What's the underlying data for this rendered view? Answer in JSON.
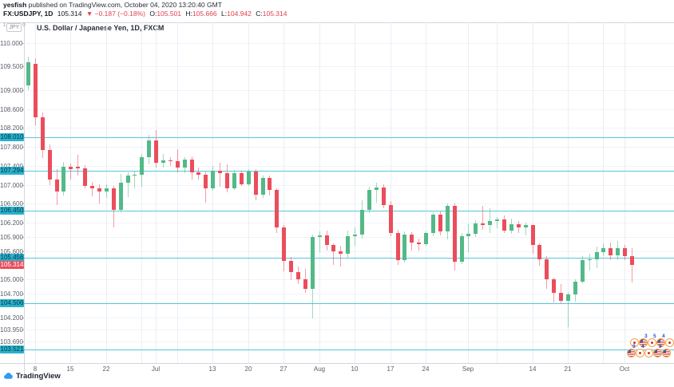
{
  "header": {
    "byline": {
      "author": "yesfish",
      "rest": " published on TradingView.com, October 04, 2020 13:20:40 GMT"
    },
    "symbol_line": {
      "symbol": "FX:USDJPY, 1D",
      "last": "105.314",
      "change": "▼ −0.187 (−0.18%)",
      "o_label": "O:",
      "o": "105.501",
      "h_label": "H:",
      "h": "105.666",
      "l_label": "L:",
      "l": "104.942",
      "c_label": "C:",
      "c": "105.314"
    }
  },
  "chart": {
    "title": "U.S. Dollar / Japanese Yen, 1D, FXCM",
    "axis_unit": {
      "pre": "1",
      "unit": "JPY",
      "post": "0"
    }
  },
  "colors": {
    "up": "#53b987",
    "down": "#eb4d5c",
    "level_line": "#56c7da",
    "level_chip_bg": "#29b2cc",
    "level_chip_text": "#0a3340",
    "last_chip_bg": "#eb4d5c",
    "last_chip_text": "#ffffff",
    "logo_blue": "#2e9bf0"
  },
  "footer": {
    "logo_text": "TradingView"
  },
  "events": {
    "rows": [
      [
        {
          "type": "jp"
        },
        {
          "type": "us",
          "count": "3"
        },
        {
          "type": "jp",
          "count": "5"
        },
        {
          "type": "us",
          "count": "4"
        },
        {
          "type": "jp"
        }
      ],
      [
        {
          "type": "us",
          "count": "9"
        },
        {
          "type": "jp",
          "count": "4"
        },
        {
          "type": "jp"
        },
        {
          "type": "us",
          "count": "9"
        },
        {
          "type": "us"
        }
      ]
    ]
  },
  "chart_data": {
    "type": "candlestick",
    "title": "U.S. Dollar / Japanese Yen, 1D, FXCM",
    "symbol": "USDJPY",
    "timeframe": "1D",
    "exchange": "FXCM",
    "grid": true,
    "y_axis": {
      "side": "left",
      "range": [
        103.24,
        110.43
      ],
      "tick_labels": [
        "110.000",
        "109.500",
        "109.000",
        "108.600",
        "108.200",
        "107.800",
        "107.400",
        "107.000",
        "106.600",
        "106.200",
        "105.900",
        "105.600",
        "105.000",
        "104.700",
        "104.200",
        "103.950",
        "103.690"
      ]
    },
    "x_axis": {
      "ticks": [
        {
          "label": "8",
          "i": 1
        },
        {
          "label": "15",
          "i": 6
        },
        {
          "label": "22",
          "i": 11
        },
        {
          "label": "Jul",
          "i": 18
        },
        {
          "label": "13",
          "i": 26
        },
        {
          "label": "20",
          "i": 31
        },
        {
          "label": "27",
          "i": 36
        },
        {
          "label": "Aug",
          "i": 41
        },
        {
          "label": "10",
          "i": 46
        },
        {
          "label": "17",
          "i": 51
        },
        {
          "label": "24",
          "i": 56
        },
        {
          "label": "Sep",
          "i": 62
        },
        {
          "label": "14",
          "i": 71
        },
        {
          "label": "21",
          "i": 76
        },
        {
          "label": "Oct",
          "i": 84
        }
      ],
      "minor_gridlines": [
        16,
        21,
        66,
        81
      ]
    },
    "horizontal_levels": [
      108.01,
      107.294,
      106.45,
      105.456,
      104.506,
      103.521
    ],
    "last_price": 105.314,
    "candles": [
      {
        "d": "Jun 5",
        "o": 109.1,
        "h": 109.7,
        "l": 109.0,
        "c": 109.59
      },
      {
        "d": "Jun 8",
        "o": 109.56,
        "h": 109.68,
        "l": 108.26,
        "c": 108.42
      },
      {
        "d": "Jun 9",
        "o": 108.42,
        "h": 108.52,
        "l": 107.56,
        "c": 107.74
      },
      {
        "d": "Jun 10",
        "o": 107.74,
        "h": 107.86,
        "l": 106.99,
        "c": 107.12
      },
      {
        "d": "Jun 11",
        "o": 107.12,
        "h": 107.33,
        "l": 106.58,
        "c": 106.86
      },
      {
        "d": "Jun 12",
        "o": 106.86,
        "h": 107.48,
        "l": 106.77,
        "c": 107.38
      },
      {
        "d": "Jun 15",
        "o": 107.38,
        "h": 107.45,
        "l": 107.12,
        "c": 107.33
      },
      {
        "d": "Jun 16",
        "o": 107.38,
        "h": 107.64,
        "l": 107.2,
        "c": 107.35
      },
      {
        "d": "Jun 17",
        "o": 107.35,
        "h": 107.42,
        "l": 106.92,
        "c": 106.97
      },
      {
        "d": "Jun 18",
        "o": 106.97,
        "h": 107.07,
        "l": 106.76,
        "c": 106.92
      },
      {
        "d": "Jun 19",
        "o": 106.92,
        "h": 107.02,
        "l": 106.6,
        "c": 106.86
      },
      {
        "d": "Jun 22",
        "o": 106.86,
        "h": 107.02,
        "l": 106.72,
        "c": 106.93
      },
      {
        "d": "Jun 23",
        "o": 106.93,
        "h": 106.98,
        "l": 106.1,
        "c": 106.48
      },
      {
        "d": "Jun 24",
        "o": 106.48,
        "h": 107.23,
        "l": 106.43,
        "c": 107.05
      },
      {
        "d": "Jun 25",
        "o": 107.05,
        "h": 107.27,
        "l": 106.74,
        "c": 107.19
      },
      {
        "d": "Jun 26",
        "o": 107.19,
        "h": 107.3,
        "l": 106.93,
        "c": 107.22
      },
      {
        "d": "Jun 29",
        "o": 107.22,
        "h": 107.65,
        "l": 106.96,
        "c": 107.58
      },
      {
        "d": "Jun 30",
        "o": 107.58,
        "h": 108.05,
        "l": 107.43,
        "c": 107.93
      },
      {
        "d": "Jul 1",
        "o": 107.93,
        "h": 108.16,
        "l": 107.36,
        "c": 107.46
      },
      {
        "d": "Jul 2",
        "o": 107.46,
        "h": 107.65,
        "l": 107.36,
        "c": 107.52
      },
      {
        "d": "Jul 3",
        "o": 107.52,
        "h": 107.58,
        "l": 107.4,
        "c": 107.5
      },
      {
        "d": "Jul 6",
        "o": 107.5,
        "h": 107.76,
        "l": 107.26,
        "c": 107.36
      },
      {
        "d": "Jul 7",
        "o": 107.36,
        "h": 107.58,
        "l": 107.24,
        "c": 107.53
      },
      {
        "d": "Jul 8",
        "o": 107.53,
        "h": 107.6,
        "l": 107.12,
        "c": 107.26
      },
      {
        "d": "Jul 9",
        "o": 107.26,
        "h": 107.36,
        "l": 107.12,
        "c": 107.21
      },
      {
        "d": "Jul 10",
        "o": 107.21,
        "h": 107.28,
        "l": 106.63,
        "c": 106.93
      },
      {
        "d": "Jul 13",
        "o": 106.93,
        "h": 107.4,
        "l": 106.88,
        "c": 107.29
      },
      {
        "d": "Jul 14",
        "o": 107.29,
        "h": 107.46,
        "l": 106.96,
        "c": 107.25
      },
      {
        "d": "Jul 15",
        "o": 107.25,
        "h": 107.44,
        "l": 106.84,
        "c": 106.93
      },
      {
        "d": "Jul 16",
        "o": 106.93,
        "h": 107.32,
        "l": 106.89,
        "c": 107.25
      },
      {
        "d": "Jul 17",
        "o": 107.25,
        "h": 107.3,
        "l": 106.97,
        "c": 107.02
      },
      {
        "d": "Jul 20",
        "o": 107.02,
        "h": 107.33,
        "l": 106.98,
        "c": 107.28
      },
      {
        "d": "Jul 21",
        "o": 107.28,
        "h": 107.34,
        "l": 106.67,
        "c": 106.79
      },
      {
        "d": "Jul 22",
        "o": 106.79,
        "h": 107.2,
        "l": 106.72,
        "c": 107.15
      },
      {
        "d": "Jul 23",
        "o": 107.15,
        "h": 107.19,
        "l": 106.77,
        "c": 106.89
      },
      {
        "d": "Jul 24",
        "o": 106.89,
        "h": 106.93,
        "l": 105.98,
        "c": 106.11
      },
      {
        "d": "Jul 27",
        "o": 106.11,
        "h": 106.16,
        "l": 105.18,
        "c": 105.4
      },
      {
        "d": "Jul 28",
        "o": 105.4,
        "h": 105.48,
        "l": 104.99,
        "c": 105.16
      },
      {
        "d": "Jul 29",
        "o": 105.16,
        "h": 105.28,
        "l": 104.91,
        "c": 105.0
      },
      {
        "d": "Jul 30",
        "o": 105.0,
        "h": 105.22,
        "l": 104.72,
        "c": 104.8
      },
      {
        "d": "Jul 31",
        "o": 104.8,
        "h": 105.95,
        "l": 104.19,
        "c": 105.9
      },
      {
        "d": "Aug 3",
        "o": 105.9,
        "h": 106.02,
        "l": 105.58,
        "c": 105.94
      },
      {
        "d": "Aug 4",
        "o": 105.94,
        "h": 106.03,
        "l": 105.61,
        "c": 105.73
      },
      {
        "d": "Aug 5",
        "o": 105.73,
        "h": 105.77,
        "l": 105.31,
        "c": 105.59
      },
      {
        "d": "Aug 6",
        "o": 105.59,
        "h": 105.71,
        "l": 105.28,
        "c": 105.54
      },
      {
        "d": "Aug 7",
        "o": 105.54,
        "h": 106.04,
        "l": 105.47,
        "c": 105.92
      },
      {
        "d": "Aug 10",
        "o": 105.92,
        "h": 106.1,
        "l": 105.72,
        "c": 105.95
      },
      {
        "d": "Aug 11",
        "o": 105.95,
        "h": 106.68,
        "l": 105.86,
        "c": 106.48
      },
      {
        "d": "Aug 12",
        "o": 106.48,
        "h": 106.96,
        "l": 106.4,
        "c": 106.9
      },
      {
        "d": "Aug 13",
        "o": 106.9,
        "h": 107.05,
        "l": 106.62,
        "c": 106.94
      },
      {
        "d": "Aug 14",
        "o": 106.94,
        "h": 107.01,
        "l": 106.5,
        "c": 106.58
      },
      {
        "d": "Aug 17",
        "o": 106.58,
        "h": 106.66,
        "l": 105.92,
        "c": 105.99
      },
      {
        "d": "Aug 18",
        "o": 105.99,
        "h": 106.06,
        "l": 105.31,
        "c": 105.41
      },
      {
        "d": "Aug 19",
        "o": 105.41,
        "h": 106.01,
        "l": 105.36,
        "c": 105.95
      },
      {
        "d": "Aug 20",
        "o": 105.95,
        "h": 106.0,
        "l": 105.61,
        "c": 105.78
      },
      {
        "d": "Aug 21",
        "o": 105.78,
        "h": 105.86,
        "l": 105.62,
        "c": 105.75
      },
      {
        "d": "Aug 24",
        "o": 105.75,
        "h": 106.01,
        "l": 105.71,
        "c": 105.98
      },
      {
        "d": "Aug 25",
        "o": 105.98,
        "h": 106.42,
        "l": 105.92,
        "c": 106.37
      },
      {
        "d": "Aug 26",
        "o": 106.37,
        "h": 106.44,
        "l": 105.94,
        "c": 106.01
      },
      {
        "d": "Aug 27",
        "o": 106.01,
        "h": 106.6,
        "l": 105.85,
        "c": 106.55
      },
      {
        "d": "Aug 28",
        "o": 106.55,
        "h": 106.6,
        "l": 105.2,
        "c": 105.37
      },
      {
        "d": "Aug 31",
        "o": 105.37,
        "h": 105.98,
        "l": 105.33,
        "c": 105.91
      },
      {
        "d": "Sep 1",
        "o": 105.91,
        "h": 106.17,
        "l": 105.58,
        "c": 105.96
      },
      {
        "d": "Sep 2",
        "o": 105.96,
        "h": 106.25,
        "l": 105.9,
        "c": 106.18
      },
      {
        "d": "Sep 3",
        "o": 106.18,
        "h": 106.55,
        "l": 106.06,
        "c": 106.15
      },
      {
        "d": "Sep 4",
        "o": 106.15,
        "h": 106.51,
        "l": 105.99,
        "c": 106.24
      },
      {
        "d": "Sep 7",
        "o": 106.24,
        "h": 106.32,
        "l": 106.08,
        "c": 106.27
      },
      {
        "d": "Sep 8",
        "o": 106.27,
        "h": 106.35,
        "l": 105.98,
        "c": 106.04
      },
      {
        "d": "Sep 9",
        "o": 106.04,
        "h": 106.28,
        "l": 105.97,
        "c": 106.17
      },
      {
        "d": "Sep 10",
        "o": 106.17,
        "h": 106.24,
        "l": 105.99,
        "c": 106.1
      },
      {
        "d": "Sep 11",
        "o": 106.1,
        "h": 106.2,
        "l": 105.94,
        "c": 106.15
      },
      {
        "d": "Sep 14",
        "o": 106.15,
        "h": 106.16,
        "l": 105.55,
        "c": 105.73
      },
      {
        "d": "Sep 15",
        "o": 105.73,
        "h": 105.77,
        "l": 105.29,
        "c": 105.43
      },
      {
        "d": "Sep 16",
        "o": 105.43,
        "h": 105.5,
        "l": 104.8,
        "c": 105.0
      },
      {
        "d": "Sep 17",
        "o": 105.0,
        "h": 105.04,
        "l": 104.52,
        "c": 104.73
      },
      {
        "d": "Sep 18",
        "o": 104.73,
        "h": 104.9,
        "l": 104.5,
        "c": 104.56
      },
      {
        "d": "Sep 21",
        "o": 104.56,
        "h": 104.74,
        "l": 104.0,
        "c": 104.68
      },
      {
        "d": "Sep 22",
        "o": 104.68,
        "h": 105.01,
        "l": 104.54,
        "c": 104.95
      },
      {
        "d": "Sep 23",
        "o": 104.95,
        "h": 105.5,
        "l": 104.92,
        "c": 105.41
      },
      {
        "d": "Sep 24",
        "o": 105.41,
        "h": 105.54,
        "l": 105.19,
        "c": 105.43
      },
      {
        "d": "Sep 25",
        "o": 105.43,
        "h": 105.7,
        "l": 105.24,
        "c": 105.58
      },
      {
        "d": "Sep 28",
        "o": 105.58,
        "h": 105.76,
        "l": 105.49,
        "c": 105.67
      },
      {
        "d": "Sep 29",
        "o": 105.67,
        "h": 105.78,
        "l": 105.42,
        "c": 105.52
      },
      {
        "d": "Sep 30",
        "o": 105.52,
        "h": 105.81,
        "l": 105.41,
        "c": 105.66
      },
      {
        "d": "Oct 1",
        "o": 105.66,
        "h": 105.74,
        "l": 105.42,
        "c": 105.501
      },
      {
        "d": "Oct 2",
        "o": 105.501,
        "h": 105.666,
        "l": 104.942,
        "c": 105.314
      }
    ]
  }
}
